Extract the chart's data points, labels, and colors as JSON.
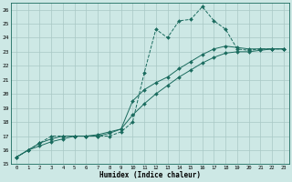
{
  "xlabel": "Humidex (Indice chaleur)",
  "xlim": [
    -0.5,
    23.5
  ],
  "ylim": [
    15,
    26.5
  ],
  "xticks": [
    0,
    1,
    2,
    3,
    4,
    5,
    6,
    7,
    8,
    9,
    10,
    11,
    12,
    13,
    14,
    15,
    16,
    17,
    18,
    19,
    20,
    21,
    22,
    23
  ],
  "yticks": [
    15,
    16,
    17,
    18,
    19,
    20,
    21,
    22,
    23,
    24,
    25,
    26
  ],
  "background_color": "#cde8e5",
  "line_color": "#1a6b5e",
  "grid_color": "#a8c8c4",
  "curves": [
    {
      "x": [
        0,
        1,
        2,
        3,
        4,
        5,
        6,
        7,
        8,
        9,
        10,
        11,
        12,
        13,
        14,
        15,
        16,
        17,
        18,
        19,
        20,
        21,
        22,
        23
      ],
      "y": [
        15.5,
        16.0,
        16.5,
        17.0,
        17.0,
        17.0,
        17.0,
        17.0,
        17.0,
        17.3,
        18.0,
        21.5,
        24.6,
        24.0,
        25.2,
        25.3,
        26.2,
        25.2,
        24.6,
        23.2,
        23.1,
        23.2,
        23.2,
        23.2
      ],
      "linestyle": "--"
    },
    {
      "x": [
        0,
        1,
        2,
        3,
        4,
        5,
        6,
        7,
        8,
        9,
        10,
        11,
        12,
        13,
        14,
        15,
        16,
        17,
        18,
        19,
        20,
        21,
        22,
        23
      ],
      "y": [
        15.5,
        16.0,
        16.5,
        16.8,
        17.0,
        17.0,
        17.0,
        17.1,
        17.3,
        17.5,
        19.5,
        20.3,
        20.8,
        21.2,
        21.8,
        22.3,
        22.8,
        23.2,
        23.4,
        23.3,
        23.2,
        23.2,
        23.2,
        23.2
      ],
      "linestyle": "-"
    },
    {
      "x": [
        0,
        1,
        2,
        3,
        4,
        5,
        6,
        7,
        8,
        9,
        10,
        11,
        12,
        13,
        14,
        15,
        16,
        17,
        18,
        19,
        20,
        21,
        22,
        23
      ],
      "y": [
        15.5,
        16.0,
        16.3,
        16.6,
        16.8,
        17.0,
        17.0,
        17.0,
        17.2,
        17.5,
        18.5,
        19.3,
        20.0,
        20.6,
        21.2,
        21.7,
        22.2,
        22.6,
        22.9,
        23.0,
        23.0,
        23.1,
        23.2,
        23.2
      ],
      "linestyle": "-"
    }
  ]
}
